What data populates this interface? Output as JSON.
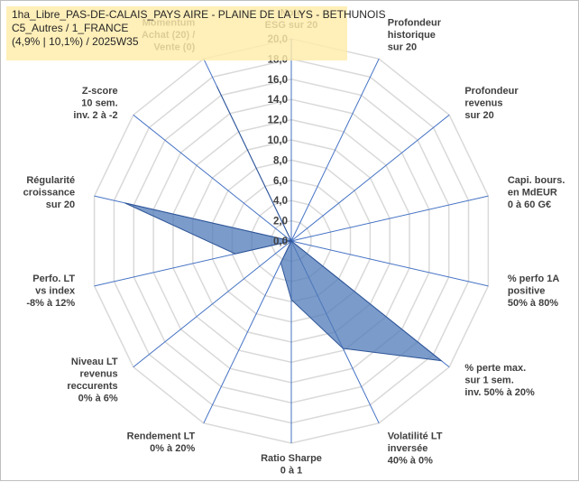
{
  "title_lines": [
    "1ha_Libre_PAS-DE-CALAIS_PAYS AIRE - PLAINE DE LA LYS - BETHUNOIS",
    "C5_Autres / 1_FRANCE",
    "(4,9% | 10,1%) / 2025W35"
  ],
  "chart_data": {
    "type": "radar",
    "rmin": 0,
    "rmax": 20,
    "ticks": [
      "0,0",
      "2,0",
      "4,0",
      "6,0",
      "8,0",
      "10,0",
      "12,0",
      "14,0",
      "16,0",
      "18,0",
      "20,0"
    ],
    "categories": [
      "Note ESG sur 20",
      "Profondeur historique sur 20",
      "Profondeur revenus sur 20",
      "Capi. bours. en MdEUR 0 à 60 G€",
      "% perfo 1A positive 50% à 80%",
      "% perte max. sur 1 sem. inv. 50% à 20%",
      "Volatilité LT inversée 40% à 0%",
      "Ratio Sharpe 0 à 1",
      "Rendement LT 0% à 20%",
      "Niveau LT revenus reccurents 0% à 6%",
      "Perfo. LT vs index -8% à 12%",
      "Régularité croissance sur 20",
      "Z-score 10 sem. inv. 2 à -2",
      "Momentum Achat (20) / Vente (0)"
    ],
    "category_lines": [
      [
        "Note",
        "ESG sur 20"
      ],
      [
        "Profondeur",
        "historique",
        "sur 20"
      ],
      [
        "Profondeur",
        "revenus",
        "sur 20"
      ],
      [
        "Capi. bours.",
        "en MdEUR",
        "0 à 60 G€"
      ],
      [
        "% perfo 1A",
        "positive",
        "50% à 80%"
      ],
      [
        "% perte max.",
        "sur 1 sem.",
        "inv. 50% à 20%"
      ],
      [
        "Volatilité LT",
        "inversée",
        "40% à 0%"
      ],
      [
        "Ratio Sharpe",
        "0 à 1"
      ],
      [
        "Rendement LT",
        "0% à 20%"
      ],
      [
        "Niveau LT",
        "revenus",
        "reccurents",
        "0% à 6%"
      ],
      [
        "Perfo. LT",
        "vs index",
        "-8% à 12%"
      ],
      [
        "Régularité",
        "croissance",
        "sur 20"
      ],
      [
        "Z-score",
        "10 sem.",
        "inv. 2 à -2"
      ],
      [
        "Momentum",
        "Achat (20) /",
        "Vente (0)"
      ]
    ],
    "series": [
      {
        "values": [
          0,
          0,
          0,
          0,
          0,
          19.0,
          11.8,
          5.8,
          2.4,
          0,
          5.7,
          16.9,
          0,
          17.0
        ]
      }
    ],
    "colors": {
      "fill": "#4f7ab8",
      "fill_opacity": 0.75,
      "outline": "#2f5597",
      "spoke": "#4472c4",
      "grid": "#d9d9d9"
    }
  }
}
